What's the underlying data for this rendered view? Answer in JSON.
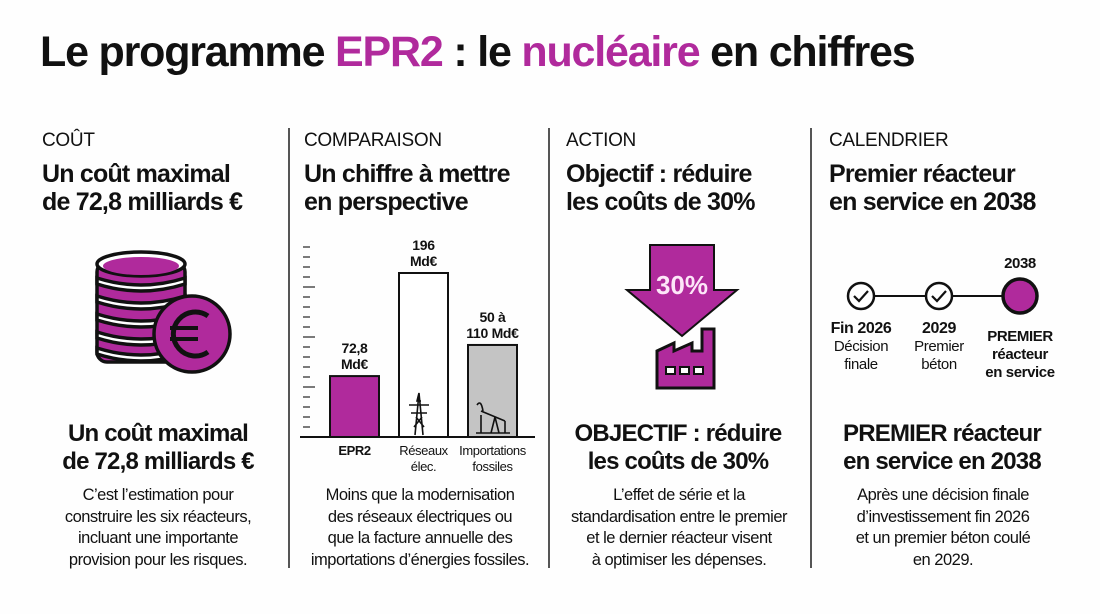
{
  "title": {
    "part1": "Le programme ",
    "part2": "EPR2",
    "part3": " : le ",
    "part4": "nucléaire",
    "part5": " en chiffres"
  },
  "colors": {
    "accent": "#b02a9c",
    "grey_bar": "#c4c4c4",
    "text": "#111111"
  },
  "columns": [
    {
      "category": "COÛT",
      "heading": [
        "Un coût maximal",
        "de 72,8 milliards €"
      ],
      "icon": "euro-coins-stack-icon",
      "subheading": [
        "Un coût maximal",
        "de 72,8 milliards €"
      ],
      "body": [
        "C’est l’estimation pour",
        "construire les six réacteurs,",
        "incluant une importante",
        "provision pour les risques."
      ]
    },
    {
      "category": "COMPARAISON",
      "heading": [
        "Un chiffre à mettre",
        "en perspective"
      ],
      "subheading": [],
      "body": [
        "Moins que la modernisation",
        "des réseaux électriques ou",
        "que la facture annuelle des",
        "importations d’énergies fossiles."
      ]
    },
    {
      "category": "ACTION",
      "heading": [
        "Objectif : réduire",
        "les coûts de 30%"
      ],
      "icon": "down-arrow-factory-icon",
      "arrow_label": "30%",
      "subheading": [
        "OBJECTIF : réduire",
        "les coûts de 30%"
      ],
      "body": [
        "L’effet de série et la",
        "standardisation entre le premier",
        "et le dernier réacteur visent",
        "à optimiser les dépenses."
      ]
    },
    {
      "category": "CALENDRIER",
      "heading": [
        "Premier réacteur",
        "en service en 2038"
      ],
      "subheading": [
        "PREMIER réacteur",
        "en service en 2038"
      ],
      "body": [
        "Après une décision finale",
        "d’investissement fin 2026",
        "et un premier béton coulé",
        "en 2029."
      ]
    }
  ],
  "chart_data": {
    "type": "bar",
    "categories": [
      [
        "EPR2"
      ],
      [
        "Réseaux",
        "élec."
      ],
      [
        "Importations",
        "fossiles"
      ]
    ],
    "values": [
      72.8,
      196,
      [
        50,
        110
      ]
    ],
    "data_labels": [
      [
        "72,8",
        "Md€"
      ],
      [
        "196",
        "Md€"
      ],
      [
        "50 à",
        "110 Md€"
      ]
    ],
    "bar_colors": [
      "#b02a9c",
      "#ffffff",
      "#c4c4c4"
    ],
    "bar_icons": [
      "",
      "power-pylon-icon",
      "oil-pump-icon"
    ],
    "unit": "Md€",
    "ylim": [
      0,
      215
    ]
  },
  "timeline": [
    {
      "year": "Fin 2026",
      "label": [
        "Décision",
        "finale"
      ],
      "status": "done"
    },
    {
      "year": "2029",
      "label": [
        "Premier",
        "béton"
      ],
      "status": "done"
    },
    {
      "year": "2038",
      "label": [
        "PREMIER",
        "réacteur",
        "en service"
      ],
      "status": "target"
    }
  ]
}
